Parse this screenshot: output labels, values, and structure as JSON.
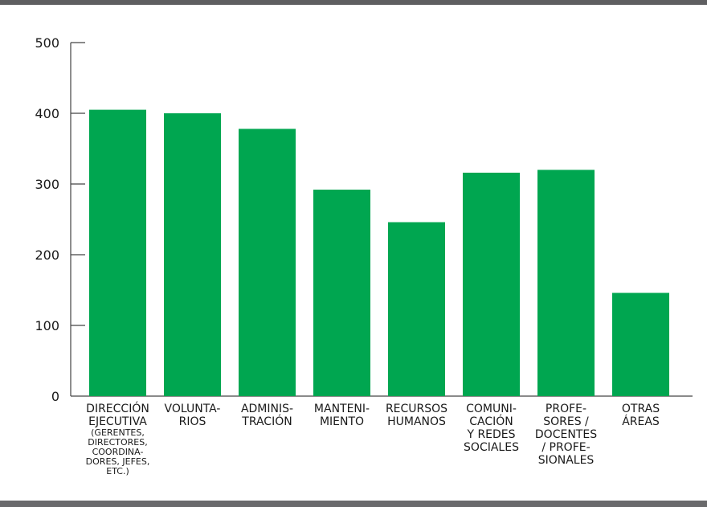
{
  "chart_data": {
    "type": "bar",
    "title": "",
    "xlabel": "",
    "ylabel": "",
    "ylim": [
      0,
      500
    ],
    "yticks": [
      "500",
      "400",
      "300",
      "200",
      "100",
      "0"
    ],
    "grid": false,
    "categories": [
      {
        "lines": [
          "DIRECCIÓN",
          "EJECUTIVA"
        ],
        "sublines": [
          "(GERENTES,",
          "DIRECTORES,",
          "COORDINA-",
          "DORES, JEFES,",
          "ETC.)"
        ]
      },
      {
        "lines": [
          "VOLUNTA-",
          "RIOS"
        ],
        "sublines": []
      },
      {
        "lines": [
          "ADMINIS-",
          "TRACIÓN"
        ],
        "sublines": []
      },
      {
        "lines": [
          "MANTENI-",
          "MIENTO"
        ],
        "sublines": []
      },
      {
        "lines": [
          "RECURSOS",
          "HUMANOS"
        ],
        "sublines": []
      },
      {
        "lines": [
          "COMUNI-",
          "CACIÓN",
          "Y REDES",
          "SOCIALES"
        ],
        "sublines": []
      },
      {
        "lines": [
          "PROFE-",
          "SORES /",
          "DOCENTES",
          "/ PROFE-",
          "SIONALES"
        ],
        "sublines": []
      },
      {
        "lines": [
          "OTRAS",
          "ÁREAS"
        ],
        "sublines": []
      }
    ],
    "values": [
      405,
      400,
      378,
      292,
      246,
      316,
      320,
      146
    ]
  },
  "colors": {
    "bar": "#00a650",
    "axis": "#444444",
    "rule": "#5f5f61"
  }
}
